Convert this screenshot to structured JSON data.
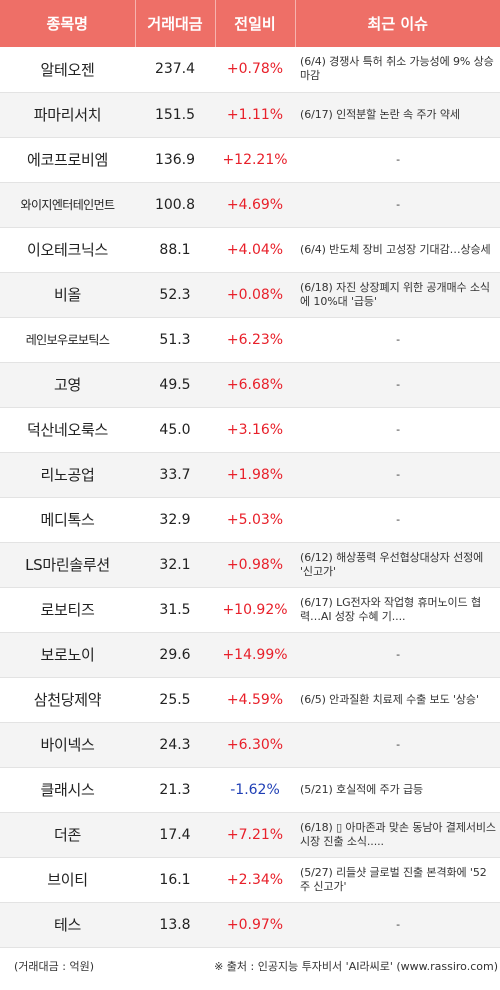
{
  "header": {
    "col_name": "종목명",
    "col_volume": "거래대금",
    "col_change": "전일비",
    "col_issue": "최근 이슈"
  },
  "rows": [
    {
      "name": "알테오젠",
      "volume": "237.4",
      "change": "+0.78%",
      "direction": "up",
      "issue": "(6/4) 경쟁사 특허 취소 가능성에 9% 상승 마감"
    },
    {
      "name": "파마리서치",
      "volume": "151.5",
      "change": "+1.11%",
      "direction": "up",
      "issue": "(6/17) 인적분할 논란 속 주가 약세"
    },
    {
      "name": "에코프로비엠",
      "volume": "136.9",
      "change": "+12.21%",
      "direction": "up",
      "issue": "-"
    },
    {
      "name": "와이지엔터테인먼트",
      "volume": "100.8",
      "change": "+4.69%",
      "direction": "up",
      "issue": "-"
    },
    {
      "name": "이오테크닉스",
      "volume": "88.1",
      "change": "+4.04%",
      "direction": "up",
      "issue": "(6/4) 반도체 장비 고성장 기대감…상승세"
    },
    {
      "name": "비올",
      "volume": "52.3",
      "change": "+0.08%",
      "direction": "up",
      "issue": "(6/18) 자진 상장폐지 위한 공개매수 소식에 10%대 '급등'"
    },
    {
      "name": "레인보우로보틱스",
      "volume": "51.3",
      "change": "+6.23%",
      "direction": "up",
      "issue": "-"
    },
    {
      "name": "고영",
      "volume": "49.5",
      "change": "+6.68%",
      "direction": "up",
      "issue": "-"
    },
    {
      "name": "덕산네오룩스",
      "volume": "45.0",
      "change": "+3.16%",
      "direction": "up",
      "issue": "-"
    },
    {
      "name": "리노공업",
      "volume": "33.7",
      "change": "+1.98%",
      "direction": "up",
      "issue": "-"
    },
    {
      "name": "메디톡스",
      "volume": "32.9",
      "change": "+5.03%",
      "direction": "up",
      "issue": "-"
    },
    {
      "name": "LS마린솔루션",
      "volume": "32.1",
      "change": "+0.98%",
      "direction": "up",
      "issue": "(6/12) 해상풍력 우선협상대상자 선정에 '신고가'"
    },
    {
      "name": "로보티즈",
      "volume": "31.5",
      "change": "+10.92%",
      "direction": "up",
      "issue": "(6/17) LG전자와 작업형 휴머노이드 협력…AI 성장 수혜 기...."
    },
    {
      "name": "보로노이",
      "volume": "29.6",
      "change": "+14.99%",
      "direction": "up",
      "issue": "-"
    },
    {
      "name": "삼천당제약",
      "volume": "25.5",
      "change": "+4.59%",
      "direction": "up",
      "issue": "(6/5) 안과질환 치료제 수출 보도 '상승'"
    },
    {
      "name": "바이넥스",
      "volume": "24.3",
      "change": "+6.30%",
      "direction": "up",
      "issue": "-"
    },
    {
      "name": "클래시스",
      "volume": "21.3",
      "change": "-1.62%",
      "direction": "down",
      "issue": "(5/21) 호실적에 주가 급등"
    },
    {
      "name": "더존",
      "volume": "17.4",
      "change": "+7.21%",
      "direction": "up",
      "issue": "(6/18) ▯ 아마존과 맞손 동남아 결제서비스 시장 진출 소식....."
    },
    {
      "name": "브이티",
      "volume": "16.1",
      "change": "+2.34%",
      "direction": "up",
      "issue": "(5/27) 리들샷 글로벌 진출 본격화에 '52주 신고가'"
    },
    {
      "name": "테스",
      "volume": "13.8",
      "change": "+0.97%",
      "direction": "up",
      "issue": "-"
    }
  ],
  "footer": {
    "unit_note": "(거래대금 : 억원)",
    "source_note": "※ 출처 : 인공지능 투자비서 'AI라씨로' (www.rassiro.com)"
  },
  "colors": {
    "header_bg": "#ee6f67",
    "up": "#e8202a",
    "down": "#1f3fb5",
    "stripe": "#f4f4f4"
  }
}
